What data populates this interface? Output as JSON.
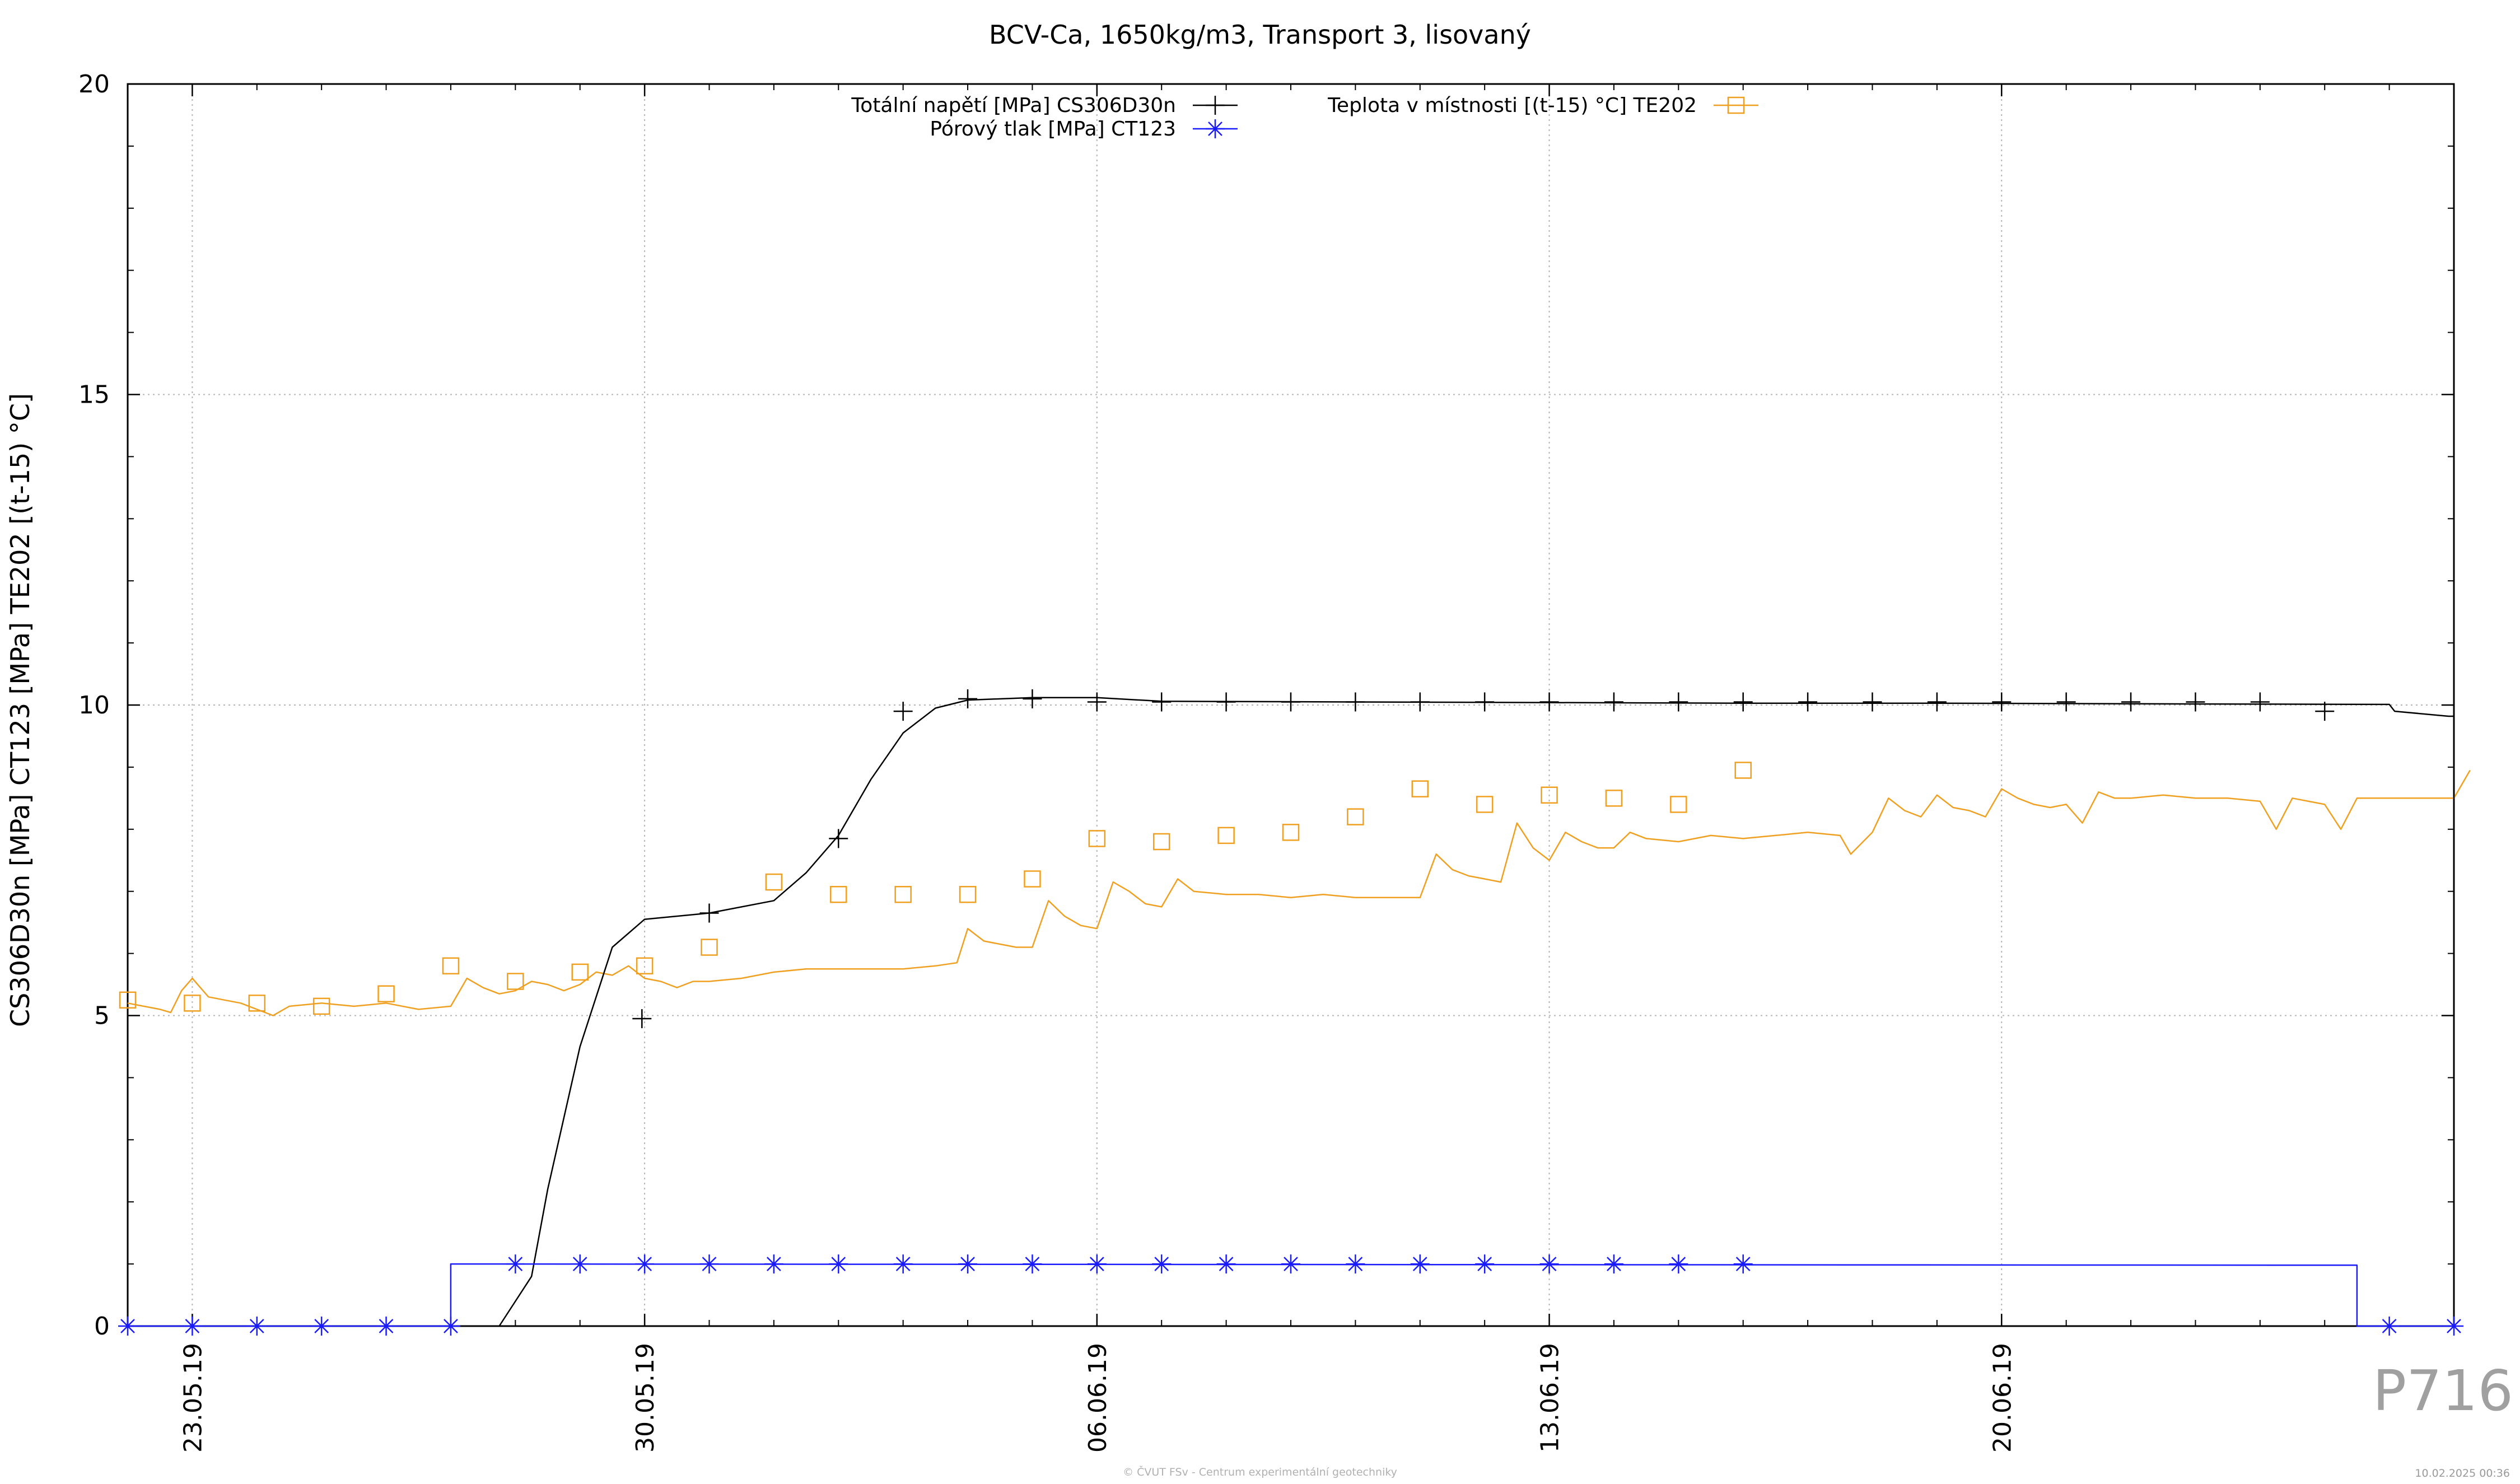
{
  "chart_data": {
    "type": "line",
    "title": "BCV-Ca, 1650kg/m3, Transport 3, lisovaný",
    "xlabel": "",
    "ylabel": "CS306D30n [MPa] CT123 [MPa] TE202 [(t-15) °C]",
    "xlim": [
      "2019-05-22",
      "2019-06-27"
    ],
    "ylim": [
      0,
      20
    ],
    "x_ticks": [
      "23.05.19",
      "30.05.19",
      "06.06.19",
      "13.06.19",
      "20.06.19"
    ],
    "y_ticks": [
      "0",
      "5",
      "10",
      "15",
      "20"
    ],
    "grid": true,
    "legend_position": "top",
    "series": [
      {
        "name": "Totální napětí [MPa] CS306D30n",
        "color": "#000000",
        "marker": "plus",
        "points": [
          [
            "2019-05-27T18:00",
            0
          ],
          [
            "2019-05-28T06:00",
            0.8
          ],
          [
            "2019-05-28T12:00",
            2.2
          ],
          [
            "2019-05-29T00:00",
            4.5
          ],
          [
            "2019-05-29T12:00",
            6.1
          ],
          [
            "2019-05-30T00:00",
            6.55
          ],
          [
            "2019-05-31T00:00",
            6.65
          ],
          [
            "2019-06-01T00:00",
            6.85
          ],
          [
            "2019-06-01T12:00",
            7.3
          ],
          [
            "2019-06-02T00:00",
            7.9
          ],
          [
            "2019-06-02T12:00",
            8.8
          ],
          [
            "2019-06-03T00:00",
            9.55
          ],
          [
            "2019-06-03T12:00",
            9.95
          ],
          [
            "2019-06-04T00:00",
            10.08
          ],
          [
            "2019-06-05T00:00",
            10.12
          ],
          [
            "2019-06-06T00:00",
            10.12
          ],
          [
            "2019-06-07T00:00",
            10.06
          ],
          [
            "2019-06-10T00:00",
            10.05
          ],
          [
            "2019-06-13T00:00",
            10.04
          ],
          [
            "2019-06-16T00:00",
            10.03
          ],
          [
            "2019-06-19T00:00",
            10.03
          ],
          [
            "2019-06-22T00:00",
            10.02
          ],
          [
            "2019-06-26T00:00",
            10.01
          ],
          [
            "2019-06-26T02:00",
            9.9
          ],
          [
            "2019-06-26T22:00",
            9.82
          ],
          [
            "2019-06-27T00:00",
            9.82
          ],
          [
            "2019-06-27T00:00",
            0
          ]
        ],
        "markers": [
          [
            "2019-05-29T23:00",
            4.95
          ],
          [
            "2019-05-31T00:00",
            6.65
          ],
          [
            "2019-06-02T00:00",
            7.85
          ],
          [
            "2019-06-03T00:00",
            9.9
          ],
          [
            "2019-06-04T00:00",
            10.1
          ],
          [
            "2019-06-05T00:00",
            10.1
          ],
          [
            "2019-06-06T00:00",
            10.05
          ],
          [
            "2019-06-07T00:00",
            10.05
          ],
          [
            "2019-06-08T00:00",
            10.05
          ],
          [
            "2019-06-09T00:00",
            10.05
          ],
          [
            "2019-06-10T00:00",
            10.05
          ],
          [
            "2019-06-11T00:00",
            10.05
          ],
          [
            "2019-06-12T00:00",
            10.05
          ],
          [
            "2019-06-13T00:00",
            10.05
          ],
          [
            "2019-06-14T00:00",
            10.05
          ],
          [
            "2019-06-15T00:00",
            10.05
          ],
          [
            "2019-06-16T00:00",
            10.05
          ],
          [
            "2019-06-17T00:00",
            10.05
          ],
          [
            "2019-06-18T00:00",
            10.05
          ],
          [
            "2019-06-19T00:00",
            10.05
          ],
          [
            "2019-06-20T00:00",
            10.05
          ],
          [
            "2019-06-21T00:00",
            10.05
          ],
          [
            "2019-06-22T00:00",
            10.05
          ],
          [
            "2019-06-23T00:00",
            10.05
          ],
          [
            "2019-06-24T00:00",
            10.05
          ],
          [
            "2019-06-25T00:00",
            9.9
          ]
        ]
      },
      {
        "name": "Pórový tlak [MPa] CT123",
        "color": "#1a1aff",
        "marker": "star",
        "points": [
          [
            "2019-05-22T00:00",
            0
          ],
          [
            "2019-05-27T00:00",
            0
          ],
          [
            "2019-05-27T00:00",
            1.0
          ],
          [
            "2019-06-25T12:00",
            0.98
          ],
          [
            "2019-06-25T12:00",
            0
          ],
          [
            "2019-06-27T00:00",
            0
          ]
        ],
        "markers": [
          [
            "2019-05-22T00:00",
            0
          ],
          [
            "2019-05-23T00:00",
            0
          ],
          [
            "2019-05-24T00:00",
            0
          ],
          [
            "2019-05-25T00:00",
            0
          ],
          [
            "2019-05-26T00:00",
            0
          ],
          [
            "2019-05-27T00:00",
            0
          ],
          [
            "2019-05-28T00:00",
            1.0
          ],
          [
            "2019-05-29T00:00",
            1.0
          ],
          [
            "2019-05-30T00:00",
            1.0
          ],
          [
            "2019-05-31T00:00",
            1.0
          ],
          [
            "2019-06-01T00:00",
            1.0
          ],
          [
            "2019-06-02T00:00",
            1.0
          ],
          [
            "2019-06-03T00:00",
            1.0
          ],
          [
            "2019-06-04T00:00",
            1.0
          ],
          [
            "2019-06-05T00:00",
            1.0
          ],
          [
            "2019-06-06T00:00",
            1.0
          ],
          [
            "2019-06-07T00:00",
            1.0
          ],
          [
            "2019-06-08T00:00",
            1.0
          ],
          [
            "2019-06-09T00:00",
            1.0
          ],
          [
            "2019-06-10T00:00",
            1.0
          ],
          [
            "2019-06-11T00:00",
            1.0
          ],
          [
            "2019-06-12T00:00",
            1.0
          ],
          [
            "2019-06-13T00:00",
            1.0
          ],
          [
            "2019-06-14T00:00",
            1.0
          ],
          [
            "2019-06-15T00:00",
            1.0
          ],
          [
            "2019-06-16T00:00",
            1.0
          ],
          [
            "2019-06-26T00:00",
            0
          ],
          [
            "2019-06-27T00:00",
            0
          ]
        ]
      },
      {
        "name": "Teplota v místnosti [(t-15) °C] TE202",
        "color": "#f0a020",
        "marker": "square",
        "points": [
          [
            "2019-05-22T00:00",
            5.2
          ],
          [
            "2019-05-22T06:00",
            5.15
          ],
          [
            "2019-05-22T12:00",
            5.1
          ],
          [
            "2019-05-22T16:00",
            5.05
          ],
          [
            "2019-05-22T20:00",
            5.4
          ],
          [
            "2019-05-23T00:00",
            5.6
          ],
          [
            "2019-05-23T06:00",
            5.3
          ],
          [
            "2019-05-23T12:00",
            5.25
          ],
          [
            "2019-05-23T18:00",
            5.2
          ],
          [
            "2019-05-24T00:00",
            5.1
          ],
          [
            "2019-05-24T06:00",
            5.0
          ],
          [
            "2019-05-24T12:00",
            5.15
          ],
          [
            "2019-05-25T00:00",
            5.2
          ],
          [
            "2019-05-25T12:00",
            5.15
          ],
          [
            "2019-05-26T00:00",
            5.2
          ],
          [
            "2019-05-26T12:00",
            5.1
          ],
          [
            "2019-05-27T00:00",
            5.15
          ],
          [
            "2019-05-27T06:00",
            5.6
          ],
          [
            "2019-05-27T12:00",
            5.45
          ],
          [
            "2019-05-27T18:00",
            5.35
          ],
          [
            "2019-05-28T00:00",
            5.4
          ],
          [
            "2019-05-28T06:00",
            5.55
          ],
          [
            "2019-05-28T12:00",
            5.5
          ],
          [
            "2019-05-28T18:00",
            5.4
          ],
          [
            "2019-05-29T00:00",
            5.5
          ],
          [
            "2019-05-29T06:00",
            5.7
          ],
          [
            "2019-05-29T12:00",
            5.65
          ],
          [
            "2019-05-29T18:00",
            5.8
          ],
          [
            "2019-05-30T00:00",
            5.6
          ],
          [
            "2019-05-30T06:00",
            5.55
          ],
          [
            "2019-05-30T12:00",
            5.45
          ],
          [
            "2019-05-30T18:00",
            5.55
          ],
          [
            "2019-05-31T00:00",
            5.55
          ],
          [
            "2019-05-31T12:00",
            5.6
          ],
          [
            "2019-06-01T00:00",
            5.7
          ],
          [
            "2019-06-01T12:00",
            5.75
          ],
          [
            "2019-06-02T00:00",
            5.75
          ],
          [
            "2019-06-02T12:00",
            5.75
          ],
          [
            "2019-06-03T00:00",
            5.75
          ],
          [
            "2019-06-03T12:00",
            5.8
          ],
          [
            "2019-06-03T20:00",
            5.85
          ],
          [
            "2019-06-04T00:00",
            6.4
          ],
          [
            "2019-06-04T06:00",
            6.2
          ],
          [
            "2019-06-04T12:00",
            6.15
          ],
          [
            "2019-06-04T18:00",
            6.1
          ],
          [
            "2019-06-05T00:00",
            6.1
          ],
          [
            "2019-06-05T06:00",
            6.85
          ],
          [
            "2019-06-05T12:00",
            6.6
          ],
          [
            "2019-06-05T18:00",
            6.45
          ],
          [
            "2019-06-06T00:00",
            6.4
          ],
          [
            "2019-06-06T06:00",
            7.15
          ],
          [
            "2019-06-06T12:00",
            7.0
          ],
          [
            "2019-06-06T18:00",
            6.8
          ],
          [
            "2019-06-07T00:00",
            6.75
          ],
          [
            "2019-06-07T06:00",
            7.2
          ],
          [
            "2019-06-07T12:00",
            7.0
          ],
          [
            "2019-06-08T00:00",
            6.95
          ],
          [
            "2019-06-08T12:00",
            6.95
          ],
          [
            "2019-06-09T00:00",
            6.9
          ],
          [
            "2019-06-09T12:00",
            6.95
          ],
          [
            "2019-06-10T00:00",
            6.9
          ],
          [
            "2019-06-10T12:00",
            6.9
          ],
          [
            "2019-06-11T00:00",
            6.9
          ],
          [
            "2019-06-11T06:00",
            7.6
          ],
          [
            "2019-06-11T12:00",
            7.35
          ],
          [
            "2019-06-11T18:00",
            7.25
          ],
          [
            "2019-06-12T00:00",
            7.2
          ],
          [
            "2019-06-12T06:00",
            7.15
          ],
          [
            "2019-06-12T12:00",
            8.1
          ],
          [
            "2019-06-12T18:00",
            7.7
          ],
          [
            "2019-06-13T00:00",
            7.5
          ],
          [
            "2019-06-13T06:00",
            7.95
          ],
          [
            "2019-06-13T12:00",
            7.8
          ],
          [
            "2019-06-13T18:00",
            7.7
          ],
          [
            "2019-06-14T00:00",
            7.7
          ],
          [
            "2019-06-14T06:00",
            7.95
          ],
          [
            "2019-06-14T12:00",
            7.85
          ],
          [
            "2019-06-15T00:00",
            7.8
          ],
          [
            "2019-06-15T12:00",
            7.9
          ],
          [
            "2019-06-16T00:00",
            7.85
          ],
          [
            "2019-06-16T12:00",
            7.9
          ],
          [
            "2019-06-17T00:00",
            7.95
          ],
          [
            "2019-06-17T12:00",
            7.9
          ],
          [
            "2019-06-17T16:00",
            7.6
          ],
          [
            "2019-06-18T00:00",
            7.95
          ],
          [
            "2019-06-18T06:00",
            8.5
          ],
          [
            "2019-06-18T12:00",
            8.3
          ],
          [
            "2019-06-18T18:00",
            8.2
          ],
          [
            "2019-06-19T00:00",
            8.55
          ],
          [
            "2019-06-19T06:00",
            8.35
          ],
          [
            "2019-06-19T12:00",
            8.3
          ],
          [
            "2019-06-19T18:00",
            8.2
          ],
          [
            "2019-06-20T00:00",
            8.65
          ],
          [
            "2019-06-20T06:00",
            8.5
          ],
          [
            "2019-06-20T12:00",
            8.4
          ],
          [
            "2019-06-20T18:00",
            8.35
          ],
          [
            "2019-06-21T00:00",
            8.4
          ],
          [
            "2019-06-21T06:00",
            8.1
          ],
          [
            "2019-06-21T12:00",
            8.6
          ],
          [
            "2019-06-21T18:00",
            8.5
          ],
          [
            "2019-06-22T00:00",
            8.5
          ],
          [
            "2019-06-22T12:00",
            8.55
          ],
          [
            "2019-06-23T00:00",
            8.5
          ],
          [
            "2019-06-23T12:00",
            8.5
          ],
          [
            "2019-06-24T00:00",
            8.45
          ],
          [
            "2019-06-24T06:00",
            8.0
          ],
          [
            "2019-06-24T12:00",
            8.5
          ],
          [
            "2019-06-24T18:00",
            8.45
          ],
          [
            "2019-06-25T00:00",
            8.4
          ],
          [
            "2019-06-25T06:00",
            8.0
          ],
          [
            "2019-06-25T12:00",
            8.5
          ],
          [
            "2019-06-26T00:00",
            8.5
          ],
          [
            "2019-06-26T12:00",
            8.5
          ],
          [
            "2019-06-27T00:00",
            8.5
          ],
          [
            "2019-06-27T06:00",
            8.95
          ]
        ],
        "markers": [
          [
            "2019-05-22T00:00",
            5.25
          ],
          [
            "2019-05-23T00:00",
            5.2
          ],
          [
            "2019-05-24T00:00",
            5.2
          ],
          [
            "2019-05-25T00:00",
            5.15
          ],
          [
            "2019-05-26T00:00",
            5.35
          ],
          [
            "2019-05-27T00:00",
            5.8
          ],
          [
            "2019-05-28T00:00",
            5.55
          ],
          [
            "2019-05-29T00:00",
            5.7
          ],
          [
            "2019-05-30T00:00",
            5.8
          ],
          [
            "2019-05-31T00:00",
            6.1
          ],
          [
            "2019-06-01T00:00",
            7.15
          ],
          [
            "2019-06-02T00:00",
            6.95
          ],
          [
            "2019-06-03T00:00",
            6.95
          ],
          [
            "2019-06-04T00:00",
            6.95
          ],
          [
            "2019-06-05T00:00",
            7.2
          ],
          [
            "2019-06-06T00:00",
            7.85
          ],
          [
            "2019-06-07T00:00",
            7.8
          ],
          [
            "2019-06-08T00:00",
            7.9
          ],
          [
            "2019-06-09T00:00",
            7.95
          ],
          [
            "2019-06-10T00:00",
            8.2
          ],
          [
            "2019-06-11T00:00",
            8.65
          ],
          [
            "2019-06-12T00:00",
            8.4
          ],
          [
            "2019-06-13T00:00",
            8.55
          ],
          [
            "2019-06-14T00:00",
            8.5
          ],
          [
            "2019-06-15T00:00",
            8.4
          ],
          [
            "2019-06-16T00:00",
            8.95
          ]
        ]
      }
    ]
  },
  "watermark": {
    "plot_id": "P716",
    "copyright": "© ČVUT FSv - Centrum experimentální geotechniky",
    "timestamp": "10.02.2025 00:36"
  }
}
